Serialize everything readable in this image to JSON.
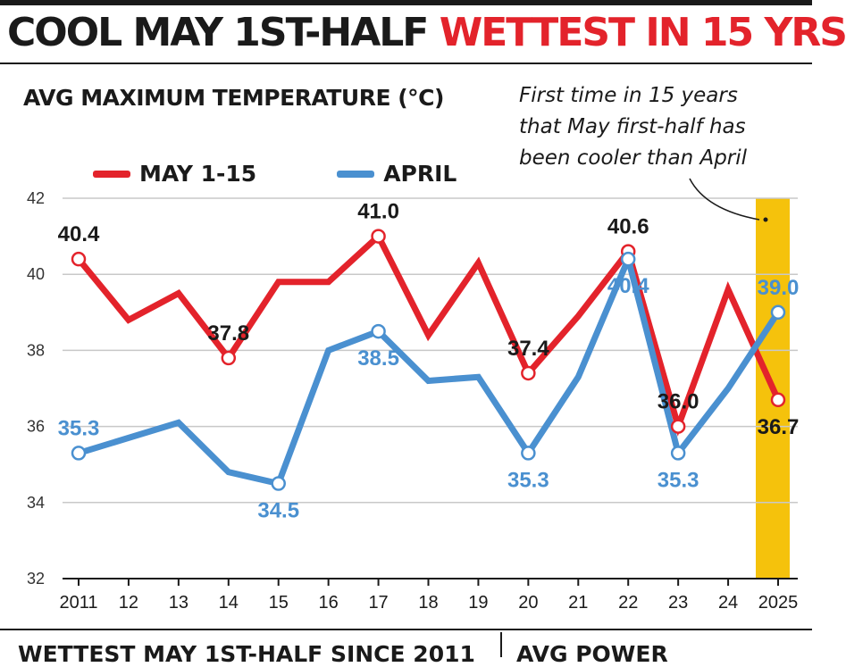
{
  "headline": {
    "part1": "COOL MAY 1ST-HALF",
    "part2": "WETTEST IN 15 YRS"
  },
  "colors": {
    "may": "#e3232b",
    "april": "#4a90d0",
    "highlight": "#f5c20c",
    "grid": "#c8c8c8",
    "text": "#1a1a1a"
  },
  "note": {
    "lines": [
      "First time in 15 years",
      "that May first-half has",
      "been cooler than April"
    ],
    "highlight_category": "2025"
  },
  "bottom": {
    "left_heading": "WETTEST MAY 1ST-HALF SINCE 2011",
    "right_heading": "AVG POWER"
  },
  "chart_data": {
    "type": "line",
    "title": "AVG MAXIMUM TEMPERATURE (°C)",
    "categories": [
      "2011",
      "12",
      "13",
      "14",
      "15",
      "16",
      "17",
      "18",
      "19",
      "20",
      "21",
      "22",
      "23",
      "24",
      "2025"
    ],
    "ylim": [
      32,
      42
    ],
    "yticks": [
      32,
      34,
      36,
      38,
      40,
      42
    ],
    "grid": true,
    "legend_placement": "top-left",
    "series": [
      {
        "name": "MAY 1-15",
        "color": "#e3232b",
        "values": [
          40.4,
          38.8,
          39.5,
          37.8,
          39.8,
          39.8,
          41.0,
          38.4,
          40.3,
          37.4,
          38.9,
          40.6,
          36.0,
          39.6,
          36.7
        ],
        "labeled_points": [
          {
            "index": 0,
            "label": "40.4",
            "pos": "above"
          },
          {
            "index": 3,
            "label": "37.8",
            "pos": "above"
          },
          {
            "index": 6,
            "label": "41.0",
            "pos": "above"
          },
          {
            "index": 9,
            "label": "37.4",
            "pos": "above"
          },
          {
            "index": 11,
            "label": "40.6",
            "pos": "above"
          },
          {
            "index": 12,
            "label": "36.0",
            "pos": "above"
          },
          {
            "index": 14,
            "label": "36.7",
            "pos": "below"
          }
        ]
      },
      {
        "name": "APRIL",
        "color": "#4a90d0",
        "values": [
          35.3,
          35.7,
          36.1,
          34.8,
          34.5,
          38.0,
          38.5,
          37.2,
          37.3,
          35.3,
          37.3,
          40.4,
          35.3,
          37.0,
          39.0
        ],
        "labeled_points": [
          {
            "index": 0,
            "label": "35.3",
            "pos": "above"
          },
          {
            "index": 4,
            "label": "34.5",
            "pos": "below"
          },
          {
            "index": 6,
            "label": "38.5",
            "pos": "below"
          },
          {
            "index": 9,
            "label": "35.3",
            "pos": "below"
          },
          {
            "index": 11,
            "label": "40.4",
            "pos": "below"
          },
          {
            "index": 12,
            "label": "35.3",
            "pos": "below"
          },
          {
            "index": 14,
            "label": "39.0",
            "pos": "above"
          }
        ]
      }
    ]
  }
}
